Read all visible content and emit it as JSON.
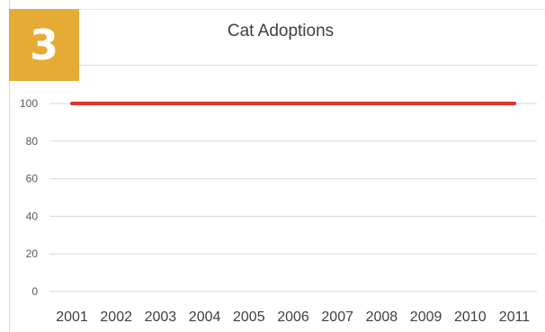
{
  "badge": {
    "text": "3",
    "color": "#e6ab35"
  },
  "chart_data": {
    "type": "line",
    "title": "Cat Adoptions",
    "xlabel": "",
    "ylabel": "",
    "categories": [
      "2001",
      "2002",
      "2003",
      "2004",
      "2005",
      "2006",
      "2007",
      "2008",
      "2009",
      "2010",
      "2011"
    ],
    "series": [
      {
        "values": [
          100,
          100,
          100,
          100,
          100,
          100,
          100,
          100,
          100,
          100,
          100
        ],
        "color": "#e0352b"
      }
    ],
    "ylim": [
      0,
      100
    ],
    "yticks": [
      0,
      20,
      40,
      60,
      80,
      100
    ],
    "grid": true,
    "legend": "none"
  }
}
